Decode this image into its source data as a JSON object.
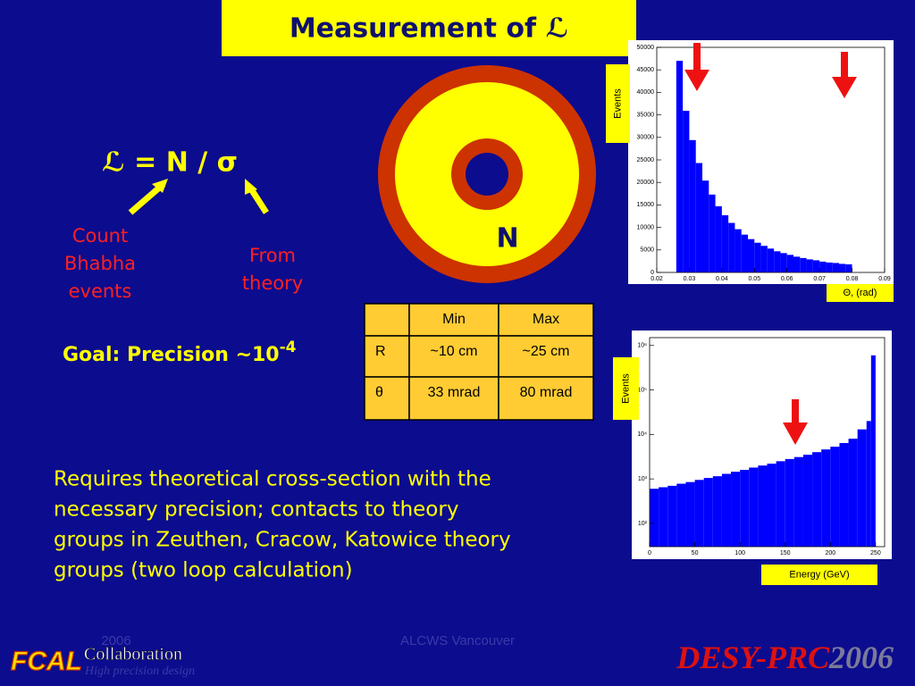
{
  "title": "Measurement of ℒ",
  "formula": "ℒ = N / σ",
  "count_label": [
    "Count",
    "Bhabha",
    "events"
  ],
  "theory_label": [
    "From",
    "theory"
  ],
  "detector_label": "N",
  "goal": {
    "text": "Goal: Precision ~10",
    "exponent": "-4"
  },
  "table": {
    "header": [
      "Min",
      "Max"
    ],
    "rows": [
      [
        "R",
        "~10 cm",
        "~25 cm"
      ],
      [
        "θ",
        "33 mrad",
        "80 mrad"
      ]
    ]
  },
  "paragraph": [
    "Requires theoretical cross-section with the",
    "necessary precision; contacts to theory",
    "groups in Zeuthen, Cracow, Katowice theory",
    "groups (two loop calculation)"
  ],
  "footer": {
    "date": "2006",
    "event": "ALCWS Vancouver"
  },
  "logo": {
    "fcal": "FCAL",
    "collaboration": "Collaboration",
    "tagline": "High precision design"
  },
  "brand": {
    "name": "DESY-PRC",
    "year": "2006"
  },
  "chart_data": [
    {
      "type": "histogram",
      "xlabel": "Θ, (rad)",
      "ylabel": "Events",
      "color": "#0000ff",
      "bins": [
        0.026,
        0.028,
        0.03,
        0.032,
        0.034,
        0.036,
        0.038,
        0.04,
        0.042,
        0.044,
        0.046,
        0.048,
        0.05,
        0.052,
        0.054,
        0.056,
        0.058,
        0.06,
        0.062,
        0.064,
        0.066,
        0.068,
        0.07,
        0.072,
        0.074,
        0.076,
        0.078,
        0.08
      ],
      "values": [
        47000,
        35900,
        29400,
        24300,
        20400,
        17300,
        14700,
        12700,
        11000,
        9600,
        8400,
        7400,
        6600,
        5900,
        5300,
        4700,
        4300,
        3900,
        3500,
        3200,
        2900,
        2700,
        2400,
        2200,
        2100,
        1900,
        1800
      ],
      "xlim": [
        0.02,
        0.09
      ],
      "ylim": [
        0,
        50000
      ],
      "xticks": [
        0.02,
        0.03,
        0.04,
        0.05,
        0.06,
        0.07,
        0.08,
        0.09
      ],
      "yticks": [
        0,
        5000,
        10000,
        15000,
        20000,
        25000,
        30000,
        35000,
        40000,
        45000,
        50000
      ],
      "log_y": false
    },
    {
      "type": "histogram",
      "xlabel": "Energy (GeV)",
      "ylabel": "Events",
      "color": "#0000ff",
      "bins": [
        0,
        10,
        20,
        30,
        40,
        50,
        60,
        70,
        80,
        90,
        100,
        110,
        120,
        130,
        140,
        150,
        160,
        170,
        180,
        190,
        200,
        210,
        220,
        230,
        240,
        245,
        250
      ],
      "values": [
        600,
        650,
        700,
        780,
        850,
        950,
        1050,
        1150,
        1300,
        1450,
        1600,
        1800,
        2000,
        2200,
        2500,
        2800,
        3100,
        3500,
        4000,
        4600,
        5300,
        6400,
        8000,
        13000,
        20000,
        600000
      ],
      "xlim": [
        0,
        260
      ],
      "ylim": [
        30,
        1500000
      ],
      "xticks": [
        0,
        50,
        100,
        150,
        200,
        250
      ],
      "yticks": [
        {
          "value": 100,
          "label": "10²"
        },
        {
          "value": 1000,
          "label": "10³"
        },
        {
          "value": 10000,
          "label": "10⁴"
        },
        {
          "value": 100000,
          "label": "10⁵"
        },
        {
          "value": 1000000,
          "label": "10⁶"
        }
      ],
      "log_y": true
    }
  ]
}
